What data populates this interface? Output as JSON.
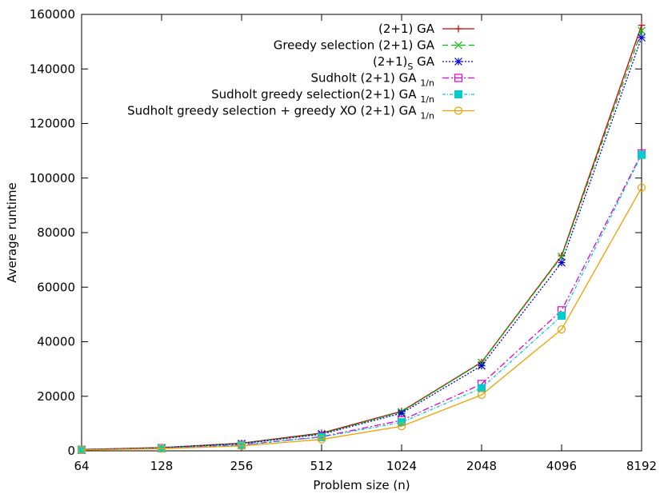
{
  "chart_data": {
    "type": "line",
    "xlabel": "Problem size (n)",
    "ylabel": "Average runtime",
    "x": [
      64,
      128,
      256,
      512,
      1024,
      2048,
      4096,
      8192
    ],
    "x_ticks": [
      "64",
      "128",
      "256",
      "512",
      "1024",
      "2048",
      "4096",
      "8192"
    ],
    "x_scale": "log2",
    "ylim": [
      0,
      160000
    ],
    "y_ticks": [
      0,
      20000,
      40000,
      60000,
      80000,
      100000,
      120000,
      140000,
      160000
    ],
    "y_tick_labels": [
      "0",
      "20000",
      "40000",
      "60000",
      "80000",
      "100000",
      "120000",
      "140000",
      "160000"
    ],
    "grid": false,
    "legend_position": "top-right",
    "series": [
      {
        "name": "(2+1) GA",
        "name_main": "(2+1) GA",
        "name_sub": "",
        "name_tail": "",
        "color": "#cc0000",
        "marker": "plus",
        "dash": "",
        "values": [
          500,
          1200,
          2800,
          6500,
          14500,
          32500,
          71500,
          156000
        ]
      },
      {
        "name": "Greedy selection (2+1) GA",
        "name_main": "Greedy selection (2+1) GA",
        "name_sub": "",
        "name_tail": "",
        "color": "#00bb00",
        "marker": "cross",
        "dash": "7,4",
        "values": [
          450,
          1150,
          2700,
          6300,
          14300,
          32400,
          71200,
          154000
        ]
      },
      {
        "name": "(2+1)S GA",
        "name_main": "(2+1)",
        "name_sub": "S",
        "name_tail": " GA",
        "color": "#0000cc",
        "marker": "star",
        "dash": "2,2",
        "values": [
          430,
          1100,
          2600,
          6100,
          13800,
          31200,
          69000,
          151500
        ]
      },
      {
        "name": "Sudholt (2+1) GA 1/n",
        "name_main": "Sudholt (2+1) GA ",
        "name_sub": "1/n",
        "name_tail": "",
        "color": "#dd00dd",
        "marker": "box",
        "dash": "8,3,2,3",
        "values": [
          380,
          950,
          2200,
          5200,
          11200,
          24500,
          51500,
          109000
        ]
      },
      {
        "name": "Sudholt greedy selection(2+1) GA 1/n",
        "name_main": "Sudholt greedy selection(2+1) GA ",
        "name_sub": "1/n",
        "name_tail": "",
        "color": "#00cccc",
        "marker": "fbox",
        "dash": "4,2,1,2",
        "values": [
          360,
          900,
          2100,
          5000,
          10500,
          23000,
          49500,
          108500
        ]
      },
      {
        "name": "Sudholt greedy selection + greedy XO (2+1) GA 1/n",
        "name_main": "Sudholt greedy selection + greedy XO (2+1) GA ",
        "name_sub": "1/n",
        "name_tail": "",
        "color": "#f0a000",
        "marker": "circle",
        "dash": "",
        "values": [
          300,
          800,
          1800,
          4200,
          9000,
          20500,
          44500,
          96500
        ]
      }
    ]
  }
}
